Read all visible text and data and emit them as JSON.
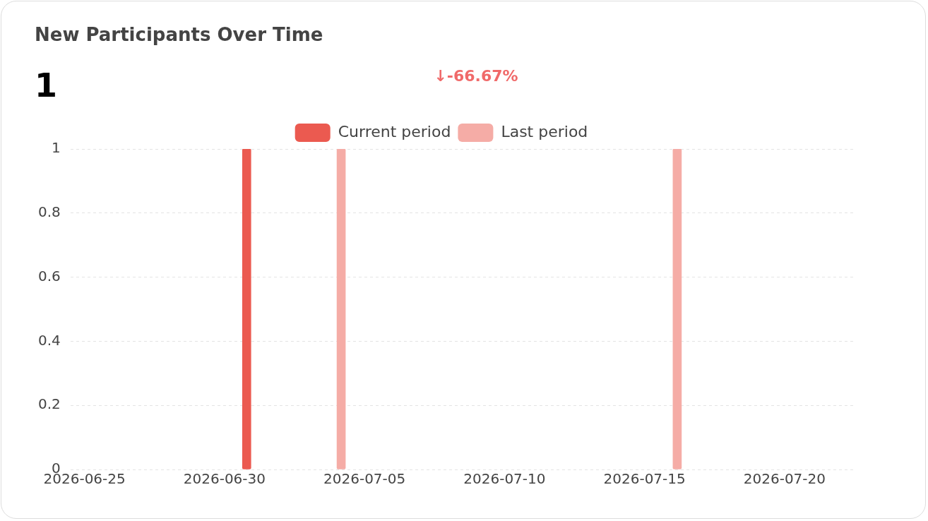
{
  "chart_data": {
    "type": "bar",
    "title": "New Participants Over Time",
    "annotations": [
      "1",
      "↓-66.67%"
    ],
    "series": [
      {
        "name": "Current period",
        "color": "#eb5a50",
        "x": [
          "2026-06-30T19:00"
        ],
        "values": [
          1
        ]
      },
      {
        "name": "Last period",
        "color": "#f5aca6",
        "x": [
          "2026-07-04T04:00",
          "2026-07-16T04:00"
        ],
        "values": [
          1,
          1
        ]
      }
    ],
    "xlim": [
      "2026-06-24T12:00",
      "2026-07-22T12:00"
    ],
    "xticks": [
      "2026-06-25",
      "2026-06-30",
      "2026-07-05",
      "2026-07-10",
      "2026-07-15",
      "2026-07-20"
    ],
    "ylim": [
      0,
      1
    ],
    "yticks": [
      0,
      0.2,
      0.4,
      0.6,
      0.8,
      1
    ],
    "grid": "y",
    "legend": "top"
  }
}
